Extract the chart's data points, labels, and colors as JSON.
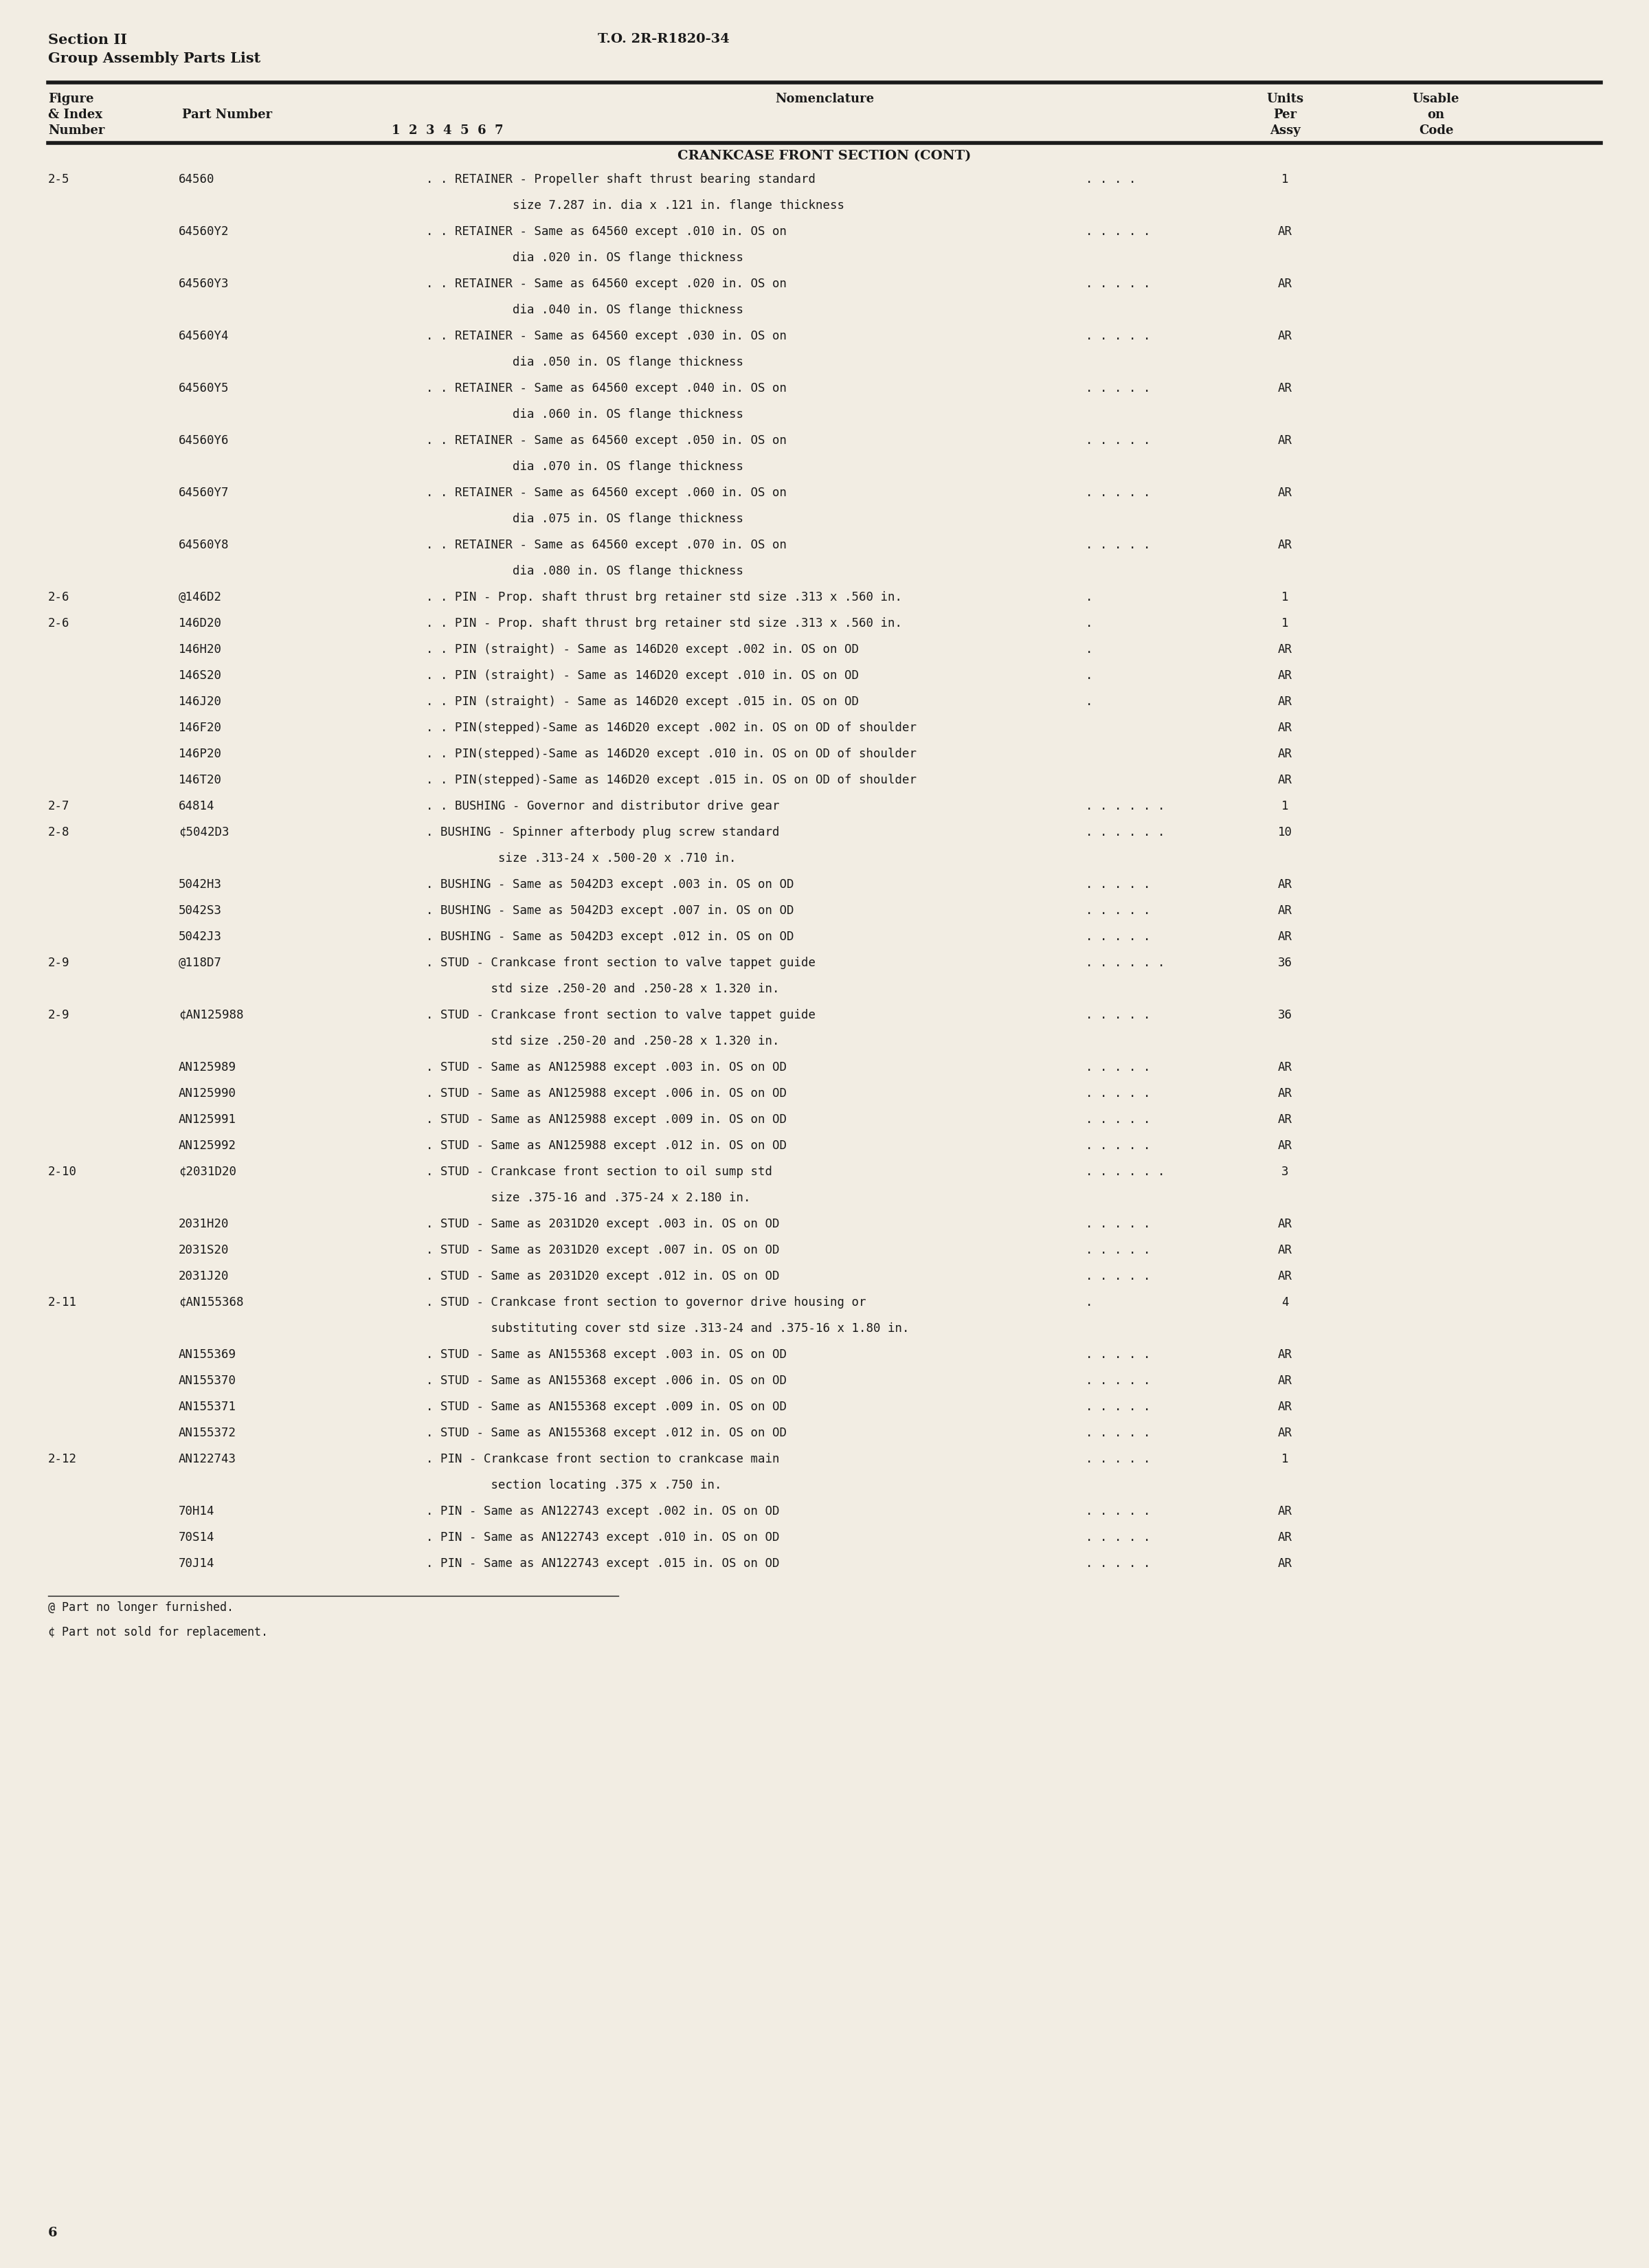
{
  "page_bg": "#f2ede3",
  "text_color": "#1a1a1a",
  "header_left_line1": "Section II",
  "header_left_line2": "Group Assembly Parts List",
  "header_right": "T.O. 2R-R1820-34",
  "section_title": "CRANKCASE FRONT SECTION (CONT)",
  "rows": [
    {
      "fig": "2-5",
      "part": "64560",
      "nom": ". . RETAINER - Propeller shaft thrust bearing standard",
      "applic": ". . . .",
      "units": "1"
    },
    {
      "fig": "",
      "part": "",
      "nom": "            size 7.287 in. dia x .121 in. flange thickness",
      "applic": "",
      "units": ""
    },
    {
      "fig": "",
      "part": "64560Y2",
      "nom": ". . RETAINER - Same as 64560 except .010 in. OS on",
      "applic": ". . . . .",
      "units": "AR"
    },
    {
      "fig": "",
      "part": "",
      "nom": "            dia .020 in. OS flange thickness",
      "applic": "",
      "units": ""
    },
    {
      "fig": "",
      "part": "64560Y3",
      "nom": ". . RETAINER - Same as 64560 except .020 in. OS on",
      "applic": ". . . . .",
      "units": "AR"
    },
    {
      "fig": "",
      "part": "",
      "nom": "            dia .040 in. OS flange thickness",
      "applic": "",
      "units": ""
    },
    {
      "fig": "",
      "part": "64560Y4",
      "nom": ". . RETAINER - Same as 64560 except .030 in. OS on",
      "applic": ". . . . .",
      "units": "AR"
    },
    {
      "fig": "",
      "part": "",
      "nom": "            dia .050 in. OS flange thickness",
      "applic": "",
      "units": ""
    },
    {
      "fig": "",
      "part": "64560Y5",
      "nom": ". . RETAINER - Same as 64560 except .040 in. OS on",
      "applic": ". . . . .",
      "units": "AR"
    },
    {
      "fig": "",
      "part": "",
      "nom": "            dia .060 in. OS flange thickness",
      "applic": "",
      "units": ""
    },
    {
      "fig": "",
      "part": "64560Y6",
      "nom": ". . RETAINER - Same as 64560 except .050 in. OS on",
      "applic": ". . . . .",
      "units": "AR"
    },
    {
      "fig": "",
      "part": "",
      "nom": "            dia .070 in. OS flange thickness",
      "applic": "",
      "units": ""
    },
    {
      "fig": "",
      "part": "64560Y7",
      "nom": ". . RETAINER - Same as 64560 except .060 in. OS on",
      "applic": ". . . . .",
      "units": "AR"
    },
    {
      "fig": "",
      "part": "",
      "nom": "            dia .075 in. OS flange thickness",
      "applic": "",
      "units": ""
    },
    {
      "fig": "",
      "part": "64560Y8",
      "nom": ". . RETAINER - Same as 64560 except .070 in. OS on",
      "applic": ". . . . .",
      "units": "AR"
    },
    {
      "fig": "",
      "part": "",
      "nom": "            dia .080 in. OS flange thickness",
      "applic": "",
      "units": ""
    },
    {
      "fig": "2-6",
      "part": "@146D2",
      "nom": ". . PIN - Prop. shaft thrust brg retainer std size .313 x .560 in.",
      "applic": ".",
      "units": "1"
    },
    {
      "fig": "2-6",
      "part": "146D20",
      "nom": ". . PIN - Prop. shaft thrust brg retainer std size .313 x .560 in.",
      "applic": ".",
      "units": "1"
    },
    {
      "fig": "",
      "part": "146H20",
      "nom": ". . PIN (straight) - Same as 146D20 except .002 in. OS on OD",
      "applic": ".",
      "units": "AR"
    },
    {
      "fig": "",
      "part": "146S20",
      "nom": ". . PIN (straight) - Same as 146D20 except .010 in. OS on OD",
      "applic": ".",
      "units": "AR"
    },
    {
      "fig": "",
      "part": "146J20",
      "nom": ". . PIN (straight) - Same as 146D20 except .015 in. OS on OD",
      "applic": ".",
      "units": "AR"
    },
    {
      "fig": "",
      "part": "146F20",
      "nom": ". . PIN(stepped)-Same as 146D20 except .002 in. OS on OD of shoulder",
      "applic": "",
      "units": "AR"
    },
    {
      "fig": "",
      "part": "146P20",
      "nom": ". . PIN(stepped)-Same as 146D20 except .010 in. OS on OD of shoulder",
      "applic": "",
      "units": "AR"
    },
    {
      "fig": "",
      "part": "146T20",
      "nom": ". . PIN(stepped)-Same as 146D20 except .015 in. OS on OD of shoulder",
      "applic": "",
      "units": "AR"
    },
    {
      "fig": "2-7",
      "part": "64814",
      "nom": ". . BUSHING - Governor and distributor drive gear",
      "applic": ". . . . . .",
      "units": "1"
    },
    {
      "fig": "2-8",
      "part": "¢5042D3",
      "nom": ". BUSHING - Spinner afterbody plug screw standard",
      "applic": ". . . . . .",
      "units": "10"
    },
    {
      "fig": "",
      "part": "",
      "nom": "          size .313-24 x .500-20 x .710 in.",
      "applic": "",
      "units": ""
    },
    {
      "fig": "",
      "part": "5042H3",
      "nom": ". BUSHING - Same as 5042D3 except .003 in. OS on OD",
      "applic": ". . . . .",
      "units": "AR"
    },
    {
      "fig": "",
      "part": "5042S3",
      "nom": ". BUSHING - Same as 5042D3 except .007 in. OS on OD",
      "applic": ". . . . .",
      "units": "AR"
    },
    {
      "fig": "",
      "part": "5042J3",
      "nom": ". BUSHING - Same as 5042D3 except .012 in. OS on OD",
      "applic": ". . . . .",
      "units": "AR"
    },
    {
      "fig": "2-9",
      "part": "@118D7",
      "nom": ". STUD - Crankcase front section to valve tappet guide",
      "applic": ". . . . . .",
      "units": "36"
    },
    {
      "fig": "",
      "part": "",
      "nom": "         std size .250-20 and .250-28 x 1.320 in.",
      "applic": "",
      "units": ""
    },
    {
      "fig": "2-9",
      "part": "¢AN125988",
      "nom": ". STUD - Crankcase front section to valve tappet guide",
      "applic": ". . . . .",
      "units": "36"
    },
    {
      "fig": "",
      "part": "",
      "nom": "         std size .250-20 and .250-28 x 1.320 in.",
      "applic": "",
      "units": ""
    },
    {
      "fig": "",
      "part": "AN125989",
      "nom": ". STUD - Same as AN125988 except .003 in. OS on OD",
      "applic": ". . . . .",
      "units": "AR"
    },
    {
      "fig": "",
      "part": "AN125990",
      "nom": ". STUD - Same as AN125988 except .006 in. OS on OD",
      "applic": ". . . . .",
      "units": "AR"
    },
    {
      "fig": "",
      "part": "AN125991",
      "nom": ". STUD - Same as AN125988 except .009 in. OS on OD",
      "applic": ". . . . .",
      "units": "AR"
    },
    {
      "fig": "",
      "part": "AN125992",
      "nom": ". STUD - Same as AN125988 except .012 in. OS on OD",
      "applic": ". . . . .",
      "units": "AR"
    },
    {
      "fig": "2-10",
      "part": "¢2031D20",
      "nom": ". STUD - Crankcase front section to oil sump std",
      "applic": ". . . . . .",
      "units": "3"
    },
    {
      "fig": "",
      "part": "",
      "nom": "         size .375-16 and .375-24 x 2.180 in.",
      "applic": "",
      "units": ""
    },
    {
      "fig": "",
      "part": "2031H20",
      "nom": ". STUD - Same as 2031D20 except .003 in. OS on OD",
      "applic": ". . . . .",
      "units": "AR"
    },
    {
      "fig": "",
      "part": "2031S20",
      "nom": ". STUD - Same as 2031D20 except .007 in. OS on OD",
      "applic": ". . . . .",
      "units": "AR"
    },
    {
      "fig": "",
      "part": "2031J20",
      "nom": ". STUD - Same as 2031D20 except .012 in. OS on OD",
      "applic": ". . . . .",
      "units": "AR"
    },
    {
      "fig": "2-11",
      "part": "¢AN155368",
      "nom": ". STUD - Crankcase front section to governor drive housing or",
      "applic": ".",
      "units": "4"
    },
    {
      "fig": "",
      "part": "",
      "nom": "         substituting cover std size .313-24 and .375-16 x 1.80 in.",
      "applic": "",
      "units": ""
    },
    {
      "fig": "",
      "part": "AN155369",
      "nom": ". STUD - Same as AN155368 except .003 in. OS on OD",
      "applic": ". . . . .",
      "units": "AR"
    },
    {
      "fig": "",
      "part": "AN155370",
      "nom": ". STUD - Same as AN155368 except .006 in. OS on OD",
      "applic": ". . . . .",
      "units": "AR"
    },
    {
      "fig": "",
      "part": "AN155371",
      "nom": ". STUD - Same as AN155368 except .009 in. OS on OD",
      "applic": ". . . . .",
      "units": "AR"
    },
    {
      "fig": "",
      "part": "AN155372",
      "nom": ". STUD - Same as AN155368 except .012 in. OS on OD",
      "applic": ". . . . .",
      "units": "AR"
    },
    {
      "fig": "2-12",
      "part": "AN122743",
      "nom": ". PIN - Crankcase front section to crankcase main",
      "applic": ". . . . .",
      "units": "1"
    },
    {
      "fig": "",
      "part": "",
      "nom": "         section locating .375 x .750 in.",
      "applic": "",
      "units": ""
    },
    {
      "fig": "",
      "part": "70H14",
      "nom": ". PIN - Same as AN122743 except .002 in. OS on OD",
      "applic": ". . . . .",
      "units": "AR"
    },
    {
      "fig": "",
      "part": "70S14",
      "nom": ". PIN - Same as AN122743 except .010 in. OS on OD",
      "applic": ". . . . .",
      "units": "AR"
    },
    {
      "fig": "",
      "part": "70J14",
      "nom": ". PIN - Same as AN122743 except .015 in. OS on OD",
      "applic": ". . . . .",
      "units": "AR"
    }
  ],
  "footnotes": [
    "@ Part no longer furnished.",
    "¢ Part not sold for replacement."
  ],
  "page_number": "6"
}
